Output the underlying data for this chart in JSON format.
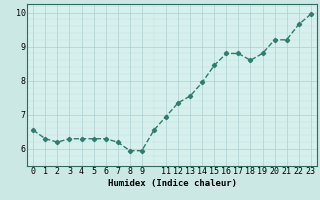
{
  "x": [
    0,
    1,
    2,
    3,
    4,
    5,
    6,
    7,
    8,
    9,
    10,
    11,
    12,
    13,
    14,
    15,
    16,
    17,
    18,
    19,
    20,
    21,
    22,
    23
  ],
  "y": [
    6.55,
    6.3,
    6.2,
    6.3,
    6.3,
    6.3,
    6.3,
    6.2,
    5.95,
    5.95,
    6.55,
    6.95,
    7.35,
    7.55,
    7.95,
    8.45,
    8.8,
    8.8,
    8.6,
    8.8,
    9.2,
    9.2,
    9.65,
    9.95
  ],
  "line_color": "#2e7d6e",
  "marker": "D",
  "markersize": 2.2,
  "bg_color": "#cce8e4",
  "axis_bg": "#d6f0ee",
  "xlabel": "Humidex (Indice chaleur)",
  "xlim": [
    -0.5,
    23.5
  ],
  "ylim": [
    5.5,
    10.25
  ],
  "yticks": [
    6,
    7,
    8,
    9,
    10
  ],
  "xticks": [
    0,
    1,
    2,
    3,
    4,
    5,
    6,
    7,
    8,
    9,
    11,
    12,
    13,
    14,
    15,
    16,
    17,
    18,
    19,
    20,
    21,
    22,
    23
  ],
  "xtick_labels": [
    "0",
    "1",
    "2",
    "3",
    "4",
    "5",
    "6",
    "7",
    "8",
    "9",
    "11",
    "12",
    "13",
    "14",
    "15",
    "16",
    "17",
    "18",
    "19",
    "20",
    "21",
    "22",
    "23"
  ],
  "linewidth": 1.0,
  "xlabel_fontsize": 6.5,
  "tick_fontsize": 6.0,
  "major_grid_color": "#aecece",
  "minor_grid_color": "#c2dede"
}
